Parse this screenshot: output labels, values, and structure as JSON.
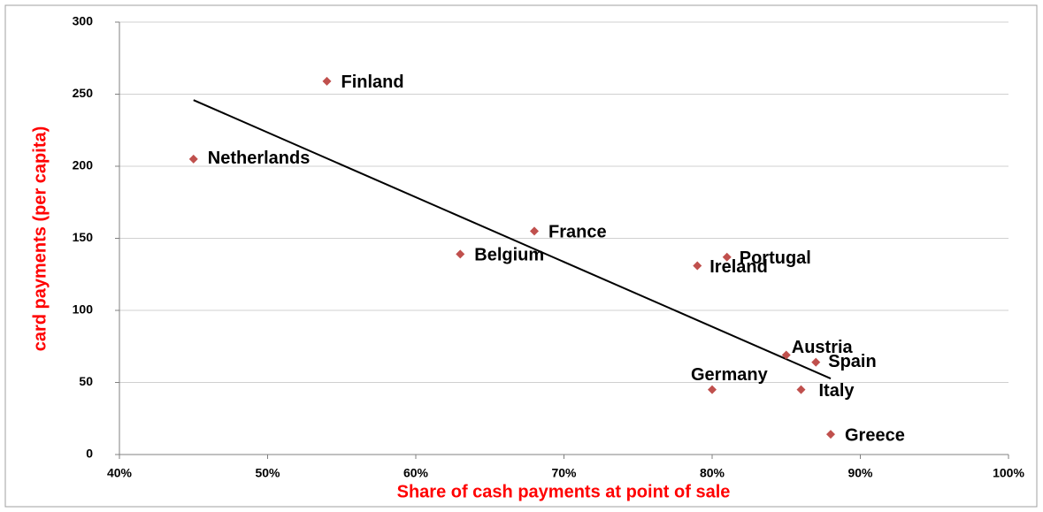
{
  "chart_data": {
    "type": "scatter",
    "x_label": "Share of cash payments at point of sale",
    "y_label": "card payments (per capita)",
    "labels": [
      "Finland",
      "Netherlands",
      "France",
      "Belgium",
      "Portugal",
      "Ireland",
      "Austria",
      "Spain",
      "Germany",
      "Italy",
      "Greece"
    ],
    "x": [
      54,
      45,
      68,
      63,
      81,
      79,
      85,
      87,
      80,
      86,
      88
    ],
    "values": [
      259,
      205,
      155,
      139,
      137,
      131,
      69,
      64,
      45,
      45,
      14
    ],
    "color": "#c0504d",
    "trendline": true,
    "grid": true,
    "xlim": [
      40,
      100
    ],
    "xticks": [
      {
        "value": 40,
        "label": "40%"
      },
      {
        "value": 50,
        "label": "50%"
      },
      {
        "value": 60,
        "label": "60%"
      },
      {
        "value": 70,
        "label": "70%"
      },
      {
        "value": 80,
        "label": "80%"
      },
      {
        "value": 90,
        "label": "90%"
      },
      {
        "value": 100,
        "label": "100%"
      }
    ],
    "ylim": [
      0,
      300
    ],
    "yticks": [
      0,
      50,
      100,
      150,
      200,
      250,
      300
    ]
  }
}
